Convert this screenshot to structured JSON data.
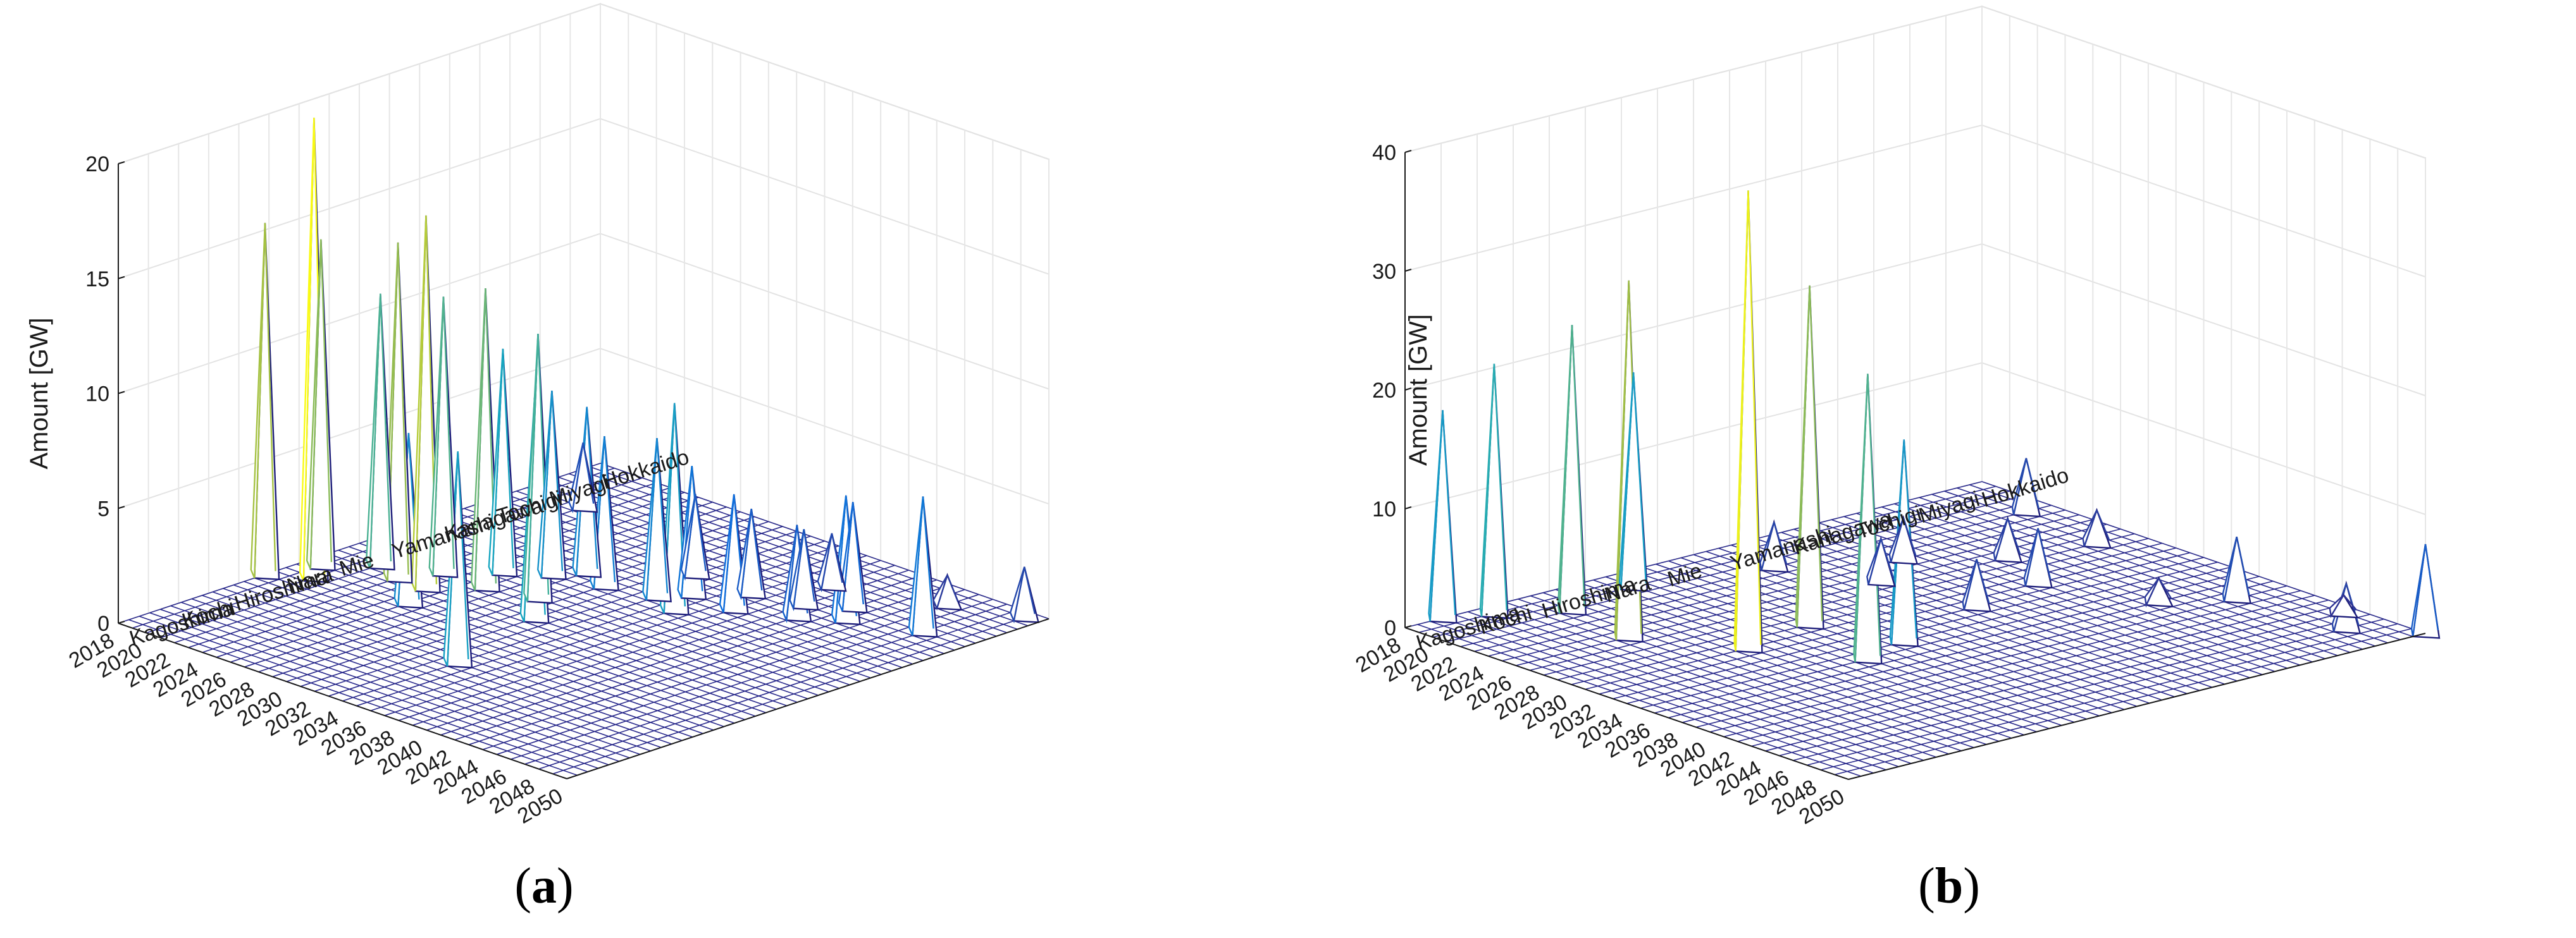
{
  "charts": [
    {
      "caption_open": "(",
      "caption_letter": "a",
      "caption_close": ")",
      "chart_data": {
        "type": "3d-mesh",
        "zlabel": "Amount [GW]",
        "zlim": [
          0,
          20
        ],
        "zticks": [
          0,
          5,
          10,
          15,
          20
        ],
        "year_ticks": [
          "2050",
          "2048",
          "2046",
          "2044",
          "2042",
          "2040",
          "2038",
          "2036",
          "2034",
          "2032",
          "2030",
          "2028",
          "2026",
          "2024",
          "2022",
          "2020",
          "2018"
        ],
        "prefecture_ticks": [
          "Hokkaido",
          "Miyagi",
          "Tochigi",
          "Kanagawa",
          "Yamanashi",
          "Mie",
          "Nara",
          "Hiroshima",
          "Kochi",
          "Kagoshima"
        ],
        "peaks": [
          {
            "year": 2049,
            "pref": 46,
            "value": 2.2
          },
          {
            "year": 2047,
            "pref": 39,
            "value": 5.9
          },
          {
            "year": 2045,
            "pref": 44,
            "value": 1.3
          },
          {
            "year": 2043,
            "pref": 37,
            "value": 5.4
          },
          {
            "year": 2042,
            "pref": 39,
            "value": 4.6
          },
          {
            "year": 2041,
            "pref": 35,
            "value": 4.0
          },
          {
            "year": 2040,
            "pref": 37,
            "value": 3.3
          },
          {
            "year": 2039,
            "pref": 41,
            "value": 2.3
          },
          {
            "year": 2038,
            "pref": 33,
            "value": 5.0
          },
          {
            "year": 2037,
            "pref": 36,
            "value": 3.7
          },
          {
            "year": 2036,
            "pref": 30,
            "value": 9.0
          },
          {
            "year": 2035,
            "pref": 33,
            "value": 5.6
          },
          {
            "year": 2034,
            "pref": 31,
            "value": 6.9
          },
          {
            "year": 2033,
            "pref": 36,
            "value": 3.5
          },
          {
            "year": 2031,
            "pref": 30,
            "value": 6.5
          },
          {
            "year": 2030,
            "pref": 25,
            "value": 11.5
          },
          {
            "year": 2029,
            "pref": 31,
            "value": 7.2
          },
          {
            "year": 2028,
            "pref": 29,
            "value": 8.0
          },
          {
            "year": 2027,
            "pref": 24,
            "value": 13.0
          },
          {
            "year": 2026,
            "pref": 27,
            "value": 9.7
          },
          {
            "year": 2025,
            "pref": 21,
            "value": 16.2
          },
          {
            "year": 2024,
            "pref": 24,
            "value": 12.0
          },
          {
            "year": 2023,
            "pref": 21,
            "value": 14.6
          },
          {
            "year": 2022,
            "pref": 40,
            "value": 2.8
          },
          {
            "year": 2021,
            "pref": 22,
            "value": 11.8
          },
          {
            "year": 2020,
            "pref": 17,
            "value": 20.0
          },
          {
            "year": 2019,
            "pref": 19,
            "value": 14.2
          },
          {
            "year": 2018,
            "pref": 15,
            "value": 15.3
          },
          {
            "year": 2032,
            "pref": 22,
            "value": 9.6
          },
          {
            "year": 2034,
            "pref": 12,
            "value": 9.2
          },
          {
            "year": 2026,
            "pref": 18,
            "value": 7.4
          }
        ]
      }
    },
    {
      "caption_open": "(",
      "caption_letter": "b",
      "caption_close": ")",
      "chart_data": {
        "type": "3d-mesh",
        "zlabel": "Amount [GW]",
        "zlim": [
          0,
          40
        ],
        "zticks": [
          0,
          10,
          20,
          30,
          40
        ],
        "year_ticks": [
          "2050",
          "2048",
          "2046",
          "2044",
          "2042",
          "2040",
          "2038",
          "2036",
          "2034",
          "2032",
          "2030",
          "2028",
          "2026",
          "2024",
          "2022",
          "2020",
          "2018"
        ],
        "prefecture_ticks": [
          "Hokkaido",
          "Miyagi",
          "Tochigi",
          "Kanagawa",
          "Yamanashi",
          "Mie",
          "Nara",
          "Hiroshima",
          "Kochi",
          "Kagoshima"
        ],
        "peaks": [
          {
            "year": 2050,
            "pref": 47,
            "value": 7.5
          },
          {
            "year": 2047,
            "pref": 44,
            "value": 3.8
          },
          {
            "year": 2045,
            "pref": 46,
            "value": 1.5
          },
          {
            "year": 2040,
            "pref": 43,
            "value": 5.2
          },
          {
            "year": 2038,
            "pref": 39,
            "value": 2.0
          },
          {
            "year": 2036,
            "pref": 18,
            "value": 24.0
          },
          {
            "year": 2035,
            "pref": 22,
            "value": 17.0
          },
          {
            "year": 2033,
            "pref": 30,
            "value": 4.0
          },
          {
            "year": 2032,
            "pref": 36,
            "value": 4.6
          },
          {
            "year": 2031,
            "pref": 14,
            "value": 38.5
          },
          {
            "year": 2030,
            "pref": 20,
            "value": 28.5
          },
          {
            "year": 2029,
            "pref": 44,
            "value": 2.8
          },
          {
            "year": 2028,
            "pref": 38,
            "value": 3.3
          },
          {
            "year": 2027,
            "pref": 29,
            "value": 3.6
          },
          {
            "year": 2026,
            "pref": 10,
            "value": 30.0
          },
          {
            "year": 2025,
            "pref": 33,
            "value": 3.5
          },
          {
            "year": 2023,
            "pref": 45,
            "value": 4.5
          },
          {
            "year": 2022,
            "pref": 26,
            "value": 3.8
          },
          {
            "year": 2021,
            "pref": 11,
            "value": 24.0
          },
          {
            "year": 2020,
            "pref": 17,
            "value": 18.0
          },
          {
            "year": 2019,
            "pref": 7,
            "value": 21.0
          },
          {
            "year": 2018,
            "pref": 4,
            "value": 17.5
          }
        ]
      }
    }
  ]
}
